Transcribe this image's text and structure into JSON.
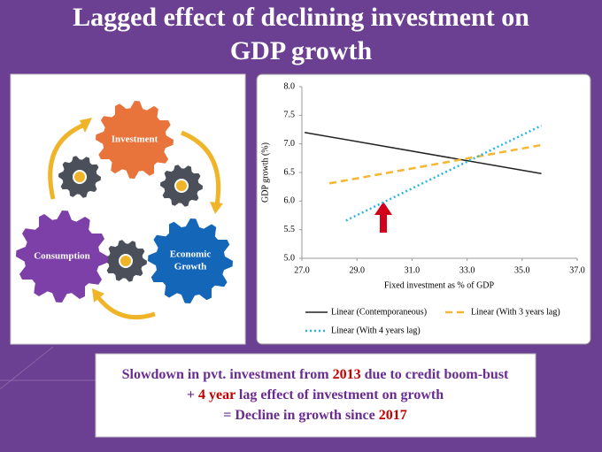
{
  "title": [
    "Lagged effect of declining investment on",
    "GDP growth"
  ],
  "diagram": {
    "nodes": [
      {
        "label": [
          "Investment"
        ],
        "color": "#e8743b"
      },
      {
        "label": [
          "Economic",
          "Growth"
        ],
        "color": "#1467b8"
      },
      {
        "label": [
          "Consumption"
        ],
        "color": "#7d3fa8"
      }
    ]
  },
  "chart_data": {
    "type": "line",
    "xlabel": "Fixed investment as % of GDP",
    "ylabel": "GDP growth (%)",
    "xlim": [
      27,
      37
    ],
    "xticks": [
      {
        "value": 27,
        "label": "27.0"
      },
      {
        "value": 29,
        "label": "29.0"
      },
      {
        "value": 31,
        "label": "31.0"
      },
      {
        "value": 33,
        "label": "33.0"
      },
      {
        "value": 35,
        "label": "35.0"
      },
      {
        "value": 37,
        "label": "37.0"
      }
    ],
    "ylim": [
      5,
      8
    ],
    "yticks": [
      {
        "value": 5,
        "label": "5.0"
      },
      5.5,
      {
        "value": 6,
        "label": "6.0"
      },
      6.5,
      {
        "value": 7,
        "label": "7.0"
      },
      7.5,
      {
        "value": 8,
        "label": "8.0"
      }
    ],
    "grid": false,
    "series": [
      {
        "name": "Linear (Contemporaneous)",
        "color": "#222222",
        "dash": "solid",
        "x": [
          27.1,
          35.7
        ],
        "values": [
          7.2,
          6.48
        ]
      },
      {
        "name": "Linear (With 3 years lag)",
        "color": "#f5b731",
        "dash": "dashed",
        "x": [
          28.0,
          35.7
        ],
        "values": [
          6.31,
          6.98
        ]
      },
      {
        "name": "Linear (With 4 years lag)",
        "color": "#29b6e6",
        "dash": "dotted",
        "x": [
          28.6,
          35.7
        ],
        "values": [
          5.66,
          7.32
        ]
      }
    ]
  },
  "callout": {
    "lines": [
      [
        "Slowdown in pvt. investment from ",
        "2013",
        " due to credit boom-bust"
      ],
      [
        "+ ",
        "4 year",
        " lag effect of investment on growth"
      ],
      [
        "= Decline in growth since ",
        "2017"
      ]
    ]
  }
}
